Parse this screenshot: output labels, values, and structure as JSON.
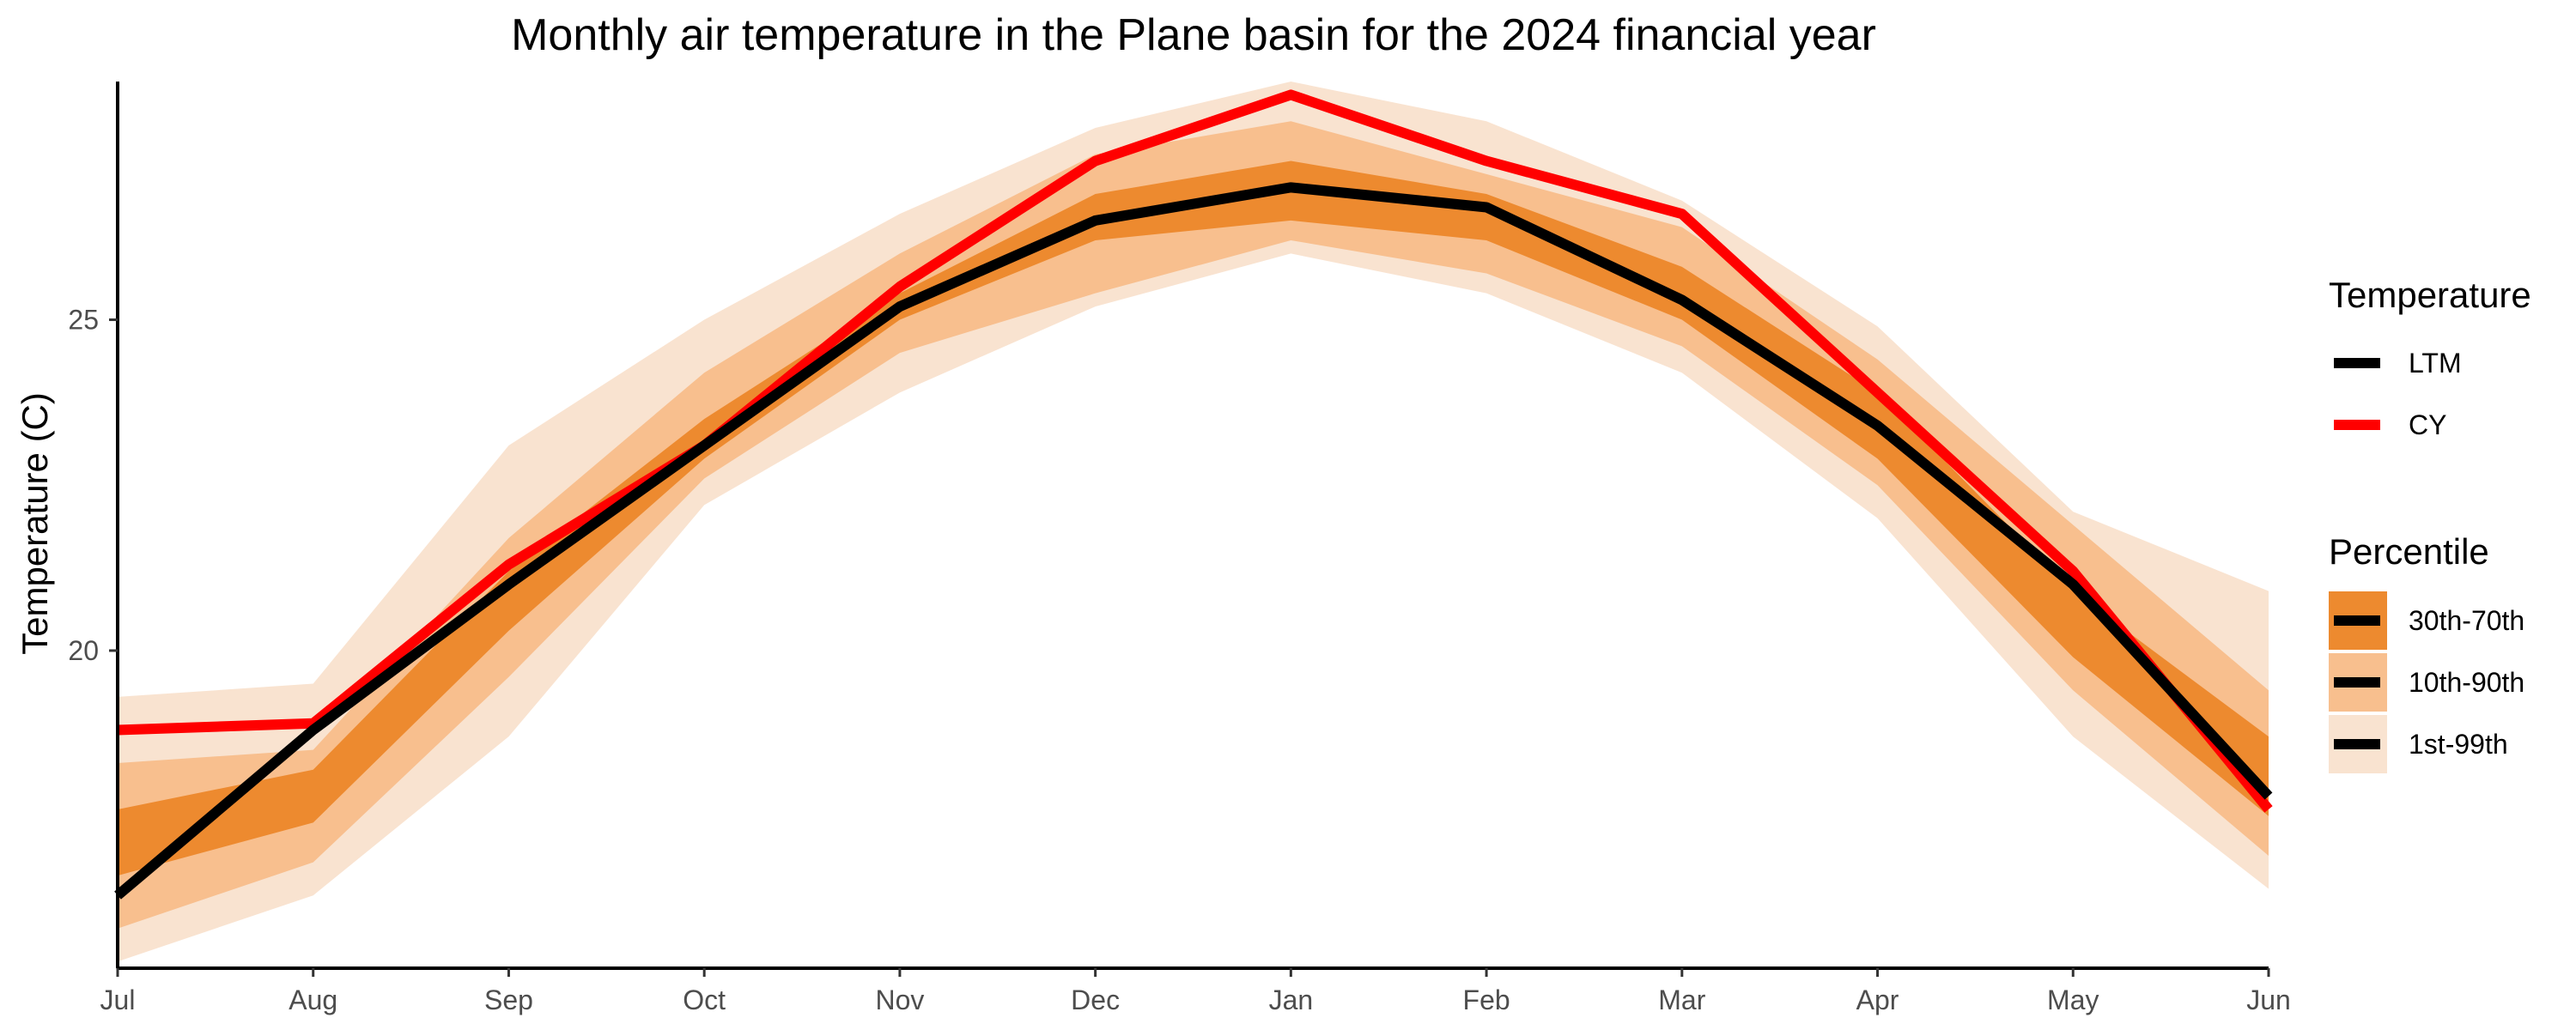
{
  "chart_data": {
    "type": "line",
    "title": "Monthly air temperature in the Plane basin for the 2024 financial year",
    "xlabel": "",
    "ylabel": "Temperature (C)",
    "categories": [
      "Jul",
      "Aug",
      "Sep",
      "Oct",
      "Nov",
      "Dec",
      "Jan",
      "Feb",
      "Mar",
      "Apr",
      "May",
      "Jun"
    ],
    "ylim": [
      15.2,
      28.6
    ],
    "yticks": [
      20,
      25
    ],
    "grid": false,
    "legend_position": "right",
    "series": [
      {
        "name": "LTM",
        "color": "#000000",
        "values": [
          16.3,
          18.8,
          21.0,
          23.1,
          25.2,
          26.5,
          27.0,
          26.7,
          25.3,
          23.4,
          21.0,
          17.8
        ]
      },
      {
        "name": "CY",
        "color": "#ff0000",
        "values": [
          18.8,
          18.9,
          21.3,
          23.1,
          25.5,
          27.4,
          28.4,
          27.4,
          26.6,
          23.9,
          21.2,
          17.6
        ]
      }
    ],
    "bands": [
      {
        "name": "1st-99th",
        "color": "#f9e3d0",
        "lower": [
          15.3,
          16.3,
          18.7,
          22.2,
          23.9,
          25.2,
          26.0,
          25.4,
          24.2,
          22.0,
          18.7,
          16.4
        ],
        "upper": [
          19.3,
          19.5,
          23.1,
          25.0,
          26.6,
          27.9,
          28.6,
          28.0,
          26.8,
          24.9,
          22.1,
          20.9
        ]
      },
      {
        "name": "10th-90th",
        "color": "#f8bf8e",
        "lower": [
          15.8,
          16.8,
          19.6,
          22.6,
          24.5,
          25.4,
          26.2,
          25.7,
          24.6,
          22.5,
          19.4,
          16.9
        ],
        "upper": [
          18.3,
          18.5,
          21.7,
          24.2,
          26.0,
          27.5,
          28.0,
          27.2,
          26.4,
          24.4,
          21.9,
          19.4
        ]
      },
      {
        "name": "30th-70th",
        "color": "#ed8a2f",
        "lower": [
          16.6,
          17.4,
          20.3,
          22.9,
          25.0,
          26.2,
          26.5,
          26.2,
          25.0,
          22.9,
          19.9,
          17.5
        ],
        "upper": [
          17.6,
          18.2,
          21.2,
          23.5,
          25.4,
          26.9,
          27.4,
          26.9,
          25.8,
          23.9,
          20.9,
          18.7
        ]
      }
    ],
    "legend": {
      "temperature": {
        "title": "Temperature",
        "items": [
          "LTM",
          "CY"
        ]
      },
      "percentile": {
        "title": "Percentile",
        "items": [
          "30th-70th",
          "10th-90th",
          "1st-99th"
        ]
      }
    }
  }
}
